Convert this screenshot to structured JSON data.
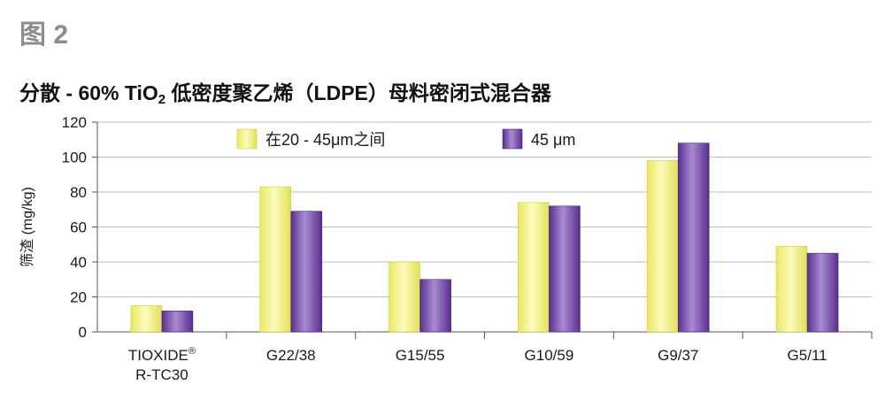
{
  "figure_label": "图 2",
  "title": {
    "prefix": "分散 - ",
    "bold_main": "60% TiO",
    "bold_sub": "2",
    "suffix": " 低密度聚乙烯（",
    "bold_ldpe": "LDPE",
    "suffix2": "）母料密闭式混合器"
  },
  "chart_data": {
    "type": "bar",
    "ylabel": "筛渣 (mg/kg)",
    "xlabel": "",
    "ylim": [
      0,
      120
    ],
    "yticks": [
      0,
      20,
      40,
      60,
      80,
      100,
      120
    ],
    "grid": true,
    "legend_position": "top",
    "categories": [
      [
        "TIOXIDE®",
        "R-TC30"
      ],
      [
        "G22/38"
      ],
      [
        "G15/55"
      ],
      [
        "G10/59"
      ],
      [
        "G9/37"
      ],
      [
        "G5/11"
      ]
    ],
    "series": [
      {
        "name": "在20 - 45μm之间",
        "color": "#f0ef7a",
        "values": [
          15,
          83,
          40,
          74,
          98,
          49
        ]
      },
      {
        "name": "45 μm",
        "color": "#7b4fb0",
        "values": [
          12,
          69,
          30,
          72,
          108,
          45
        ]
      }
    ]
  }
}
